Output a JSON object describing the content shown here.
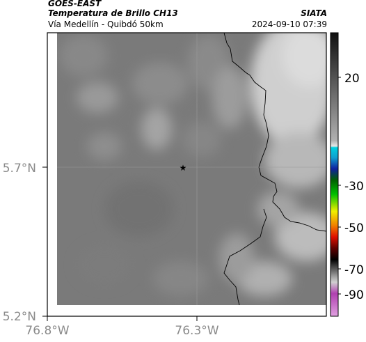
{
  "header": {
    "satellite": "GOES-EAST",
    "product": "Temperatura de Brillo CH13",
    "subtitle": "Vía Medellín - Quibdó 50km",
    "organization": "SIATA",
    "timestamp": "2024-09-10 07:39"
  },
  "map": {
    "lon_ticks": [
      {
        "value": -76.8,
        "label": "76.8°W"
      },
      {
        "value": -76.3,
        "label": "76.3°W"
      }
    ],
    "lat_ticks": [
      {
        "value": 5.2,
        "label": "5.2°N"
      },
      {
        "value": 5.7,
        "label": "5.7°N"
      }
    ],
    "marker_icon": "star-icon",
    "colors": {
      "warm_gray": "#767676",
      "cold_gray": "#d8d8d8",
      "border": "#000000"
    }
  },
  "colorbar": {
    "labels": [
      {
        "value": 20,
        "label": "20"
      },
      {
        "value": -30,
        "label": "-30"
      },
      {
        "value": -50,
        "label": "-50"
      },
      {
        "value": -70,
        "label": "-70"
      },
      {
        "value": -90,
        "label": "-90"
      }
    ],
    "colors": {
      "cyan": "#00c8d8",
      "blue": "#1020a0",
      "green": "#00b000",
      "yellow": "#f0f000",
      "red": "#e01000",
      "black": "#000000",
      "magenta": "#b040b0"
    }
  }
}
